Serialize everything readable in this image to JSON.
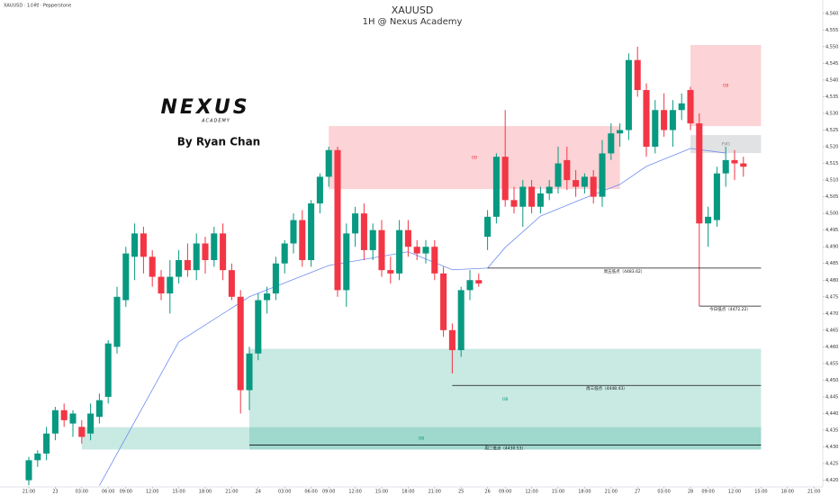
{
  "chart_data": {
    "type": "candlestick",
    "header": "XAUUSD · 1小时 · Pepperstone",
    "title": "XAUUSD",
    "subtitle": "1H @ Nexus Academy",
    "logo": "NEXUS",
    "logo_sub": "ACADEMY",
    "author": "By Ryan Chan",
    "up_color": "#089981",
    "down_color": "#f23645",
    "xlim": [
      -3,
      90
    ],
    "ylim": [
      4418,
      4564
    ],
    "xticks": [
      {
        "value": 0,
        "label": "21:00"
      },
      {
        "value": 3,
        "label": "23"
      },
      {
        "value": 6,
        "label": "03:00"
      },
      {
        "value": 9,
        "label": "06:00"
      },
      {
        "value": 11,
        "label": "09:00"
      },
      {
        "value": 14,
        "label": "12:00"
      },
      {
        "value": 17,
        "label": "15:00"
      },
      {
        "value": 20,
        "label": "18:00"
      },
      {
        "value": 23,
        "label": "21:00"
      },
      {
        "value": 26,
        "label": "24"
      },
      {
        "value": 29,
        "label": "03:00"
      },
      {
        "value": 32,
        "label": "06:00"
      },
      {
        "value": 34,
        "label": "09:00"
      },
      {
        "value": 37,
        "label": "12:00"
      },
      {
        "value": 40,
        "label": "15:00"
      },
      {
        "value": 43,
        "label": "18:00"
      },
      {
        "value": 46,
        "label": "21:00"
      },
      {
        "value": 49,
        "label": "25"
      },
      {
        "value": 52,
        "label": "26"
      },
      {
        "value": 54,
        "label": "09:00"
      },
      {
        "value": 57,
        "label": "12:00"
      },
      {
        "value": 60,
        "label": "15:00"
      },
      {
        "value": 63,
        "label": "18:00"
      },
      {
        "value": 66,
        "label": "21:00"
      },
      {
        "value": 69,
        "label": "27"
      },
      {
        "value": 72,
        "label": "03:00"
      },
      {
        "value": 75,
        "label": "28"
      },
      {
        "value": 77,
        "label": "09:00"
      },
      {
        "value": 80,
        "label": "12:00"
      },
      {
        "value": 83,
        "label": "15:00"
      },
      {
        "value": 86,
        "label": "18:00"
      },
      {
        "value": 89,
        "label": "21:00"
      }
    ],
    "yticks": [
      {
        "value": 4420,
        "label": "4,420.00"
      },
      {
        "value": 4425,
        "label": "4,425.00"
      },
      {
        "value": 4430,
        "label": "4,430.00"
      },
      {
        "value": 4435,
        "label": "4,435.00"
      },
      {
        "value": 4440,
        "label": "4,440.00"
      },
      {
        "value": 4445,
        "label": "4,445.00"
      },
      {
        "value": 4450,
        "label": "4,450.00"
      },
      {
        "value": 4455,
        "label": "4,455.00"
      },
      {
        "value": 4460,
        "label": "4,460.00"
      },
      {
        "value": 4465,
        "label": "4,465.00"
      },
      {
        "value": 4470,
        "label": "4,470.00"
      },
      {
        "value": 4475,
        "label": "4,475.00"
      },
      {
        "value": 4480,
        "label": "4,480.00"
      },
      {
        "value": 4485,
        "label": "4,485.00"
      },
      {
        "value": 4490,
        "label": "4,490.00"
      },
      {
        "value": 4495,
        "label": "4,495.00"
      },
      {
        "value": 4500,
        "label": "4,500.00"
      },
      {
        "value": 4505,
        "label": "4,505.00"
      },
      {
        "value": 4510,
        "label": "4,510.00"
      },
      {
        "value": 4515,
        "label": "4,515.00"
      },
      {
        "value": 4520,
        "label": "4,520.00"
      },
      {
        "value": 4525,
        "label": "4,525.00"
      },
      {
        "value": 4530,
        "label": "4,530.00"
      },
      {
        "value": 4535,
        "label": "4,535.00"
      },
      {
        "value": 4540,
        "label": "4,540.00"
      },
      {
        "value": 4545,
        "label": "4,545.00"
      },
      {
        "value": 4550,
        "label": "4,550.00"
      },
      {
        "value": 4555,
        "label": "4,555.00"
      },
      {
        "value": 4560,
        "label": "4,560.00"
      }
    ],
    "grid": false,
    "ohlc": [
      [
        4420,
        4427,
        4418.5,
        4426
      ],
      [
        4426,
        4429,
        4424,
        4428
      ],
      [
        4428,
        4436,
        4426,
        4434
      ],
      [
        4434,
        4442,
        4432,
        4441
      ],
      [
        4441,
        4443,
        4436,
        4438
      ],
      [
        4437,
        4441,
        4433,
        4440
      ],
      [
        4436,
        4438,
        4431,
        4433
      ],
      [
        4434,
        4443,
        4432,
        4440
      ],
      [
        4439,
        4446,
        4437,
        4444
      ],
      [
        4445,
        4462,
        4443,
        4461
      ],
      [
        4460,
        4478,
        4458,
        4475
      ],
      [
        4474,
        4490,
        4472,
        4488
      ],
      [
        4487,
        4497,
        4480,
        4494
      ],
      [
        4494,
        4496,
        4482,
        4487
      ],
      [
        4487,
        4489,
        4478,
        4481
      ],
      [
        4481,
        4483,
        4474,
        4476
      ],
      [
        4476,
        4486,
        4470,
        4481
      ],
      [
        4481,
        4489,
        4479,
        4486
      ],
      [
        4486,
        4491,
        4481,
        4483
      ],
      [
        4483,
        4494,
        4480,
        4491
      ],
      [
        4491,
        4493,
        4482,
        4486
      ],
      [
        4486,
        4496,
        4484,
        4494
      ],
      [
        4494,
        4497,
        4480,
        4483
      ],
      [
        4483,
        4485,
        4474,
        4475
      ],
      [
        4475,
        4477,
        4440,
        4447
      ],
      [
        4447,
        4460,
        4441,
        4458
      ],
      [
        4458,
        4476,
        4456,
        4474
      ],
      [
        4474,
        4478,
        4470,
        4476
      ],
      [
        4476,
        4487,
        4474,
        4485
      ],
      [
        4485,
        4492,
        4482,
        4491
      ],
      [
        4491,
        4500,
        4488,
        4498
      ],
      [
        4498,
        4501,
        4484,
        4486
      ],
      [
        4486,
        4504,
        4484,
        4503
      ],
      [
        4503,
        4512,
        4500,
        4511
      ],
      [
        4511,
        4520,
        4508,
        4519
      ],
      [
        4519,
        4520,
        4475,
        4477
      ],
      [
        4477,
        4497,
        4472,
        4494
      ],
      [
        4494,
        4502,
        4490,
        4500
      ],
      [
        4500,
        4503,
        4486,
        4489
      ],
      [
        4489,
        4497,
        4486,
        4495
      ],
      [
        4495,
        4498,
        4481,
        4483
      ],
      [
        4483,
        4487,
        4479,
        4482
      ],
      [
        4482,
        4498,
        4480,
        4495
      ],
      [
        4495,
        4498,
        4487,
        4490
      ],
      [
        4490,
        4492,
        4486,
        4488
      ],
      [
        4488,
        4492,
        4485,
        4490
      ],
      [
        4490,
        4492,
        4480,
        4482
      ],
      [
        4482,
        4484,
        4463,
        4465
      ],
      [
        4465,
        4467,
        4452,
        4459
      ],
      [
        4459,
        4478,
        4457,
        4477
      ],
      [
        4477,
        4483,
        4474,
        4480
      ],
      [
        4480,
        4482,
        4478,
        4479
      ],
      [
        4493,
        4501,
        4489,
        4499
      ],
      [
        4499,
        4518,
        4497,
        4517
      ],
      [
        4517,
        4531,
        4502,
        4504
      ],
      [
        4504,
        4508,
        4500,
        4502
      ],
      [
        4502,
        4510,
        4496,
        4508
      ],
      [
        4508,
        4510,
        4500,
        4502
      ],
      [
        4502,
        4508,
        4500,
        4506
      ],
      [
        4506,
        4510,
        4504,
        4508
      ],
      [
        4508,
        4520,
        4506,
        4515
      ],
      [
        4516,
        4520,
        4507,
        4510
      ],
      [
        4510,
        4513,
        4505,
        4508
      ],
      [
        4508,
        4512,
        4506,
        4511
      ],
      [
        4511,
        4513,
        4503,
        4505
      ],
      [
        4505,
        4522,
        4502,
        4518
      ],
      [
        4518,
        4527,
        4516,
        4524
      ],
      [
        4524,
        4527,
        4520,
        4525
      ],
      [
        4525,
        4548,
        4522,
        4546
      ],
      [
        4546,
        4550,
        4535,
        4537
      ],
      [
        4537,
        4539,
        4517,
        4520
      ],
      [
        4520,
        4534,
        4518,
        4531
      ],
      [
        4531,
        4536,
        4523,
        4525
      ],
      [
        4525,
        4534,
        4520,
        4531
      ],
      [
        4531,
        4536,
        4528,
        4533
      ],
      [
        4537,
        4538,
        4525,
        4527
      ],
      [
        4527,
        4530,
        4472.22,
        4497
      ],
      [
        4497,
        4502,
        4490,
        4499
      ],
      [
        4498,
        4514,
        4496,
        4512
      ],
      [
        4512,
        4520,
        4508,
        4516
      ],
      [
        4516,
        4519,
        4510,
        4515
      ],
      [
        4515,
        4517,
        4511,
        4514
      ]
    ],
    "ma": {
      "color": "#6f8df0",
      "x": [
        8,
        17,
        25,
        34,
        43,
        48,
        52,
        54,
        58,
        63,
        67,
        70,
        75,
        79
      ],
      "values": [
        4418.4,
        4461.5,
        4475,
        4484.4,
        4488.5,
        4483.1,
        4483.6,
        4489.8,
        4499.2,
        4504.6,
        4508.7,
        4514.1,
        4519.5,
        4518.1
      ]
    },
    "zones": [
      {
        "label": "OB",
        "color": "#f23645",
        "start": 34,
        "end": 67,
        "top": 4526.2,
        "bottom": 4507.3
      },
      {
        "label": "OB",
        "color": "#f23645",
        "start": 75,
        "end": 83,
        "top": 4550.5,
        "bottom": 4526.2
      },
      {
        "label": "FVG",
        "color": "#787b86",
        "start": 75,
        "end": 83,
        "top": 4523.5,
        "bottom": 4518.1
      },
      {
        "label": "OB",
        "color": "#089981",
        "start": 25,
        "end": 83,
        "top": 4459.4,
        "bottom": 4429.2
      },
      {
        "label": "OB",
        "color": "#089981",
        "start": 6,
        "end": 83,
        "top": 4435.9,
        "bottom": 4429.2
      }
    ],
    "levels": [
      {
        "label": "周五低点（4483.62）",
        "value": 4483.62,
        "start": 52,
        "end": 83
      },
      {
        "label": "今日低点（4472.22）",
        "value": 4472.22,
        "start": 76,
        "end": 83
      },
      {
        "label": "周三低点（4448.43）",
        "value": 4448.43,
        "start": 48,
        "end": 83
      },
      {
        "label": "周二低点（4430.53）",
        "value": 4430.53,
        "start": 25,
        "end": 83
      }
    ]
  }
}
